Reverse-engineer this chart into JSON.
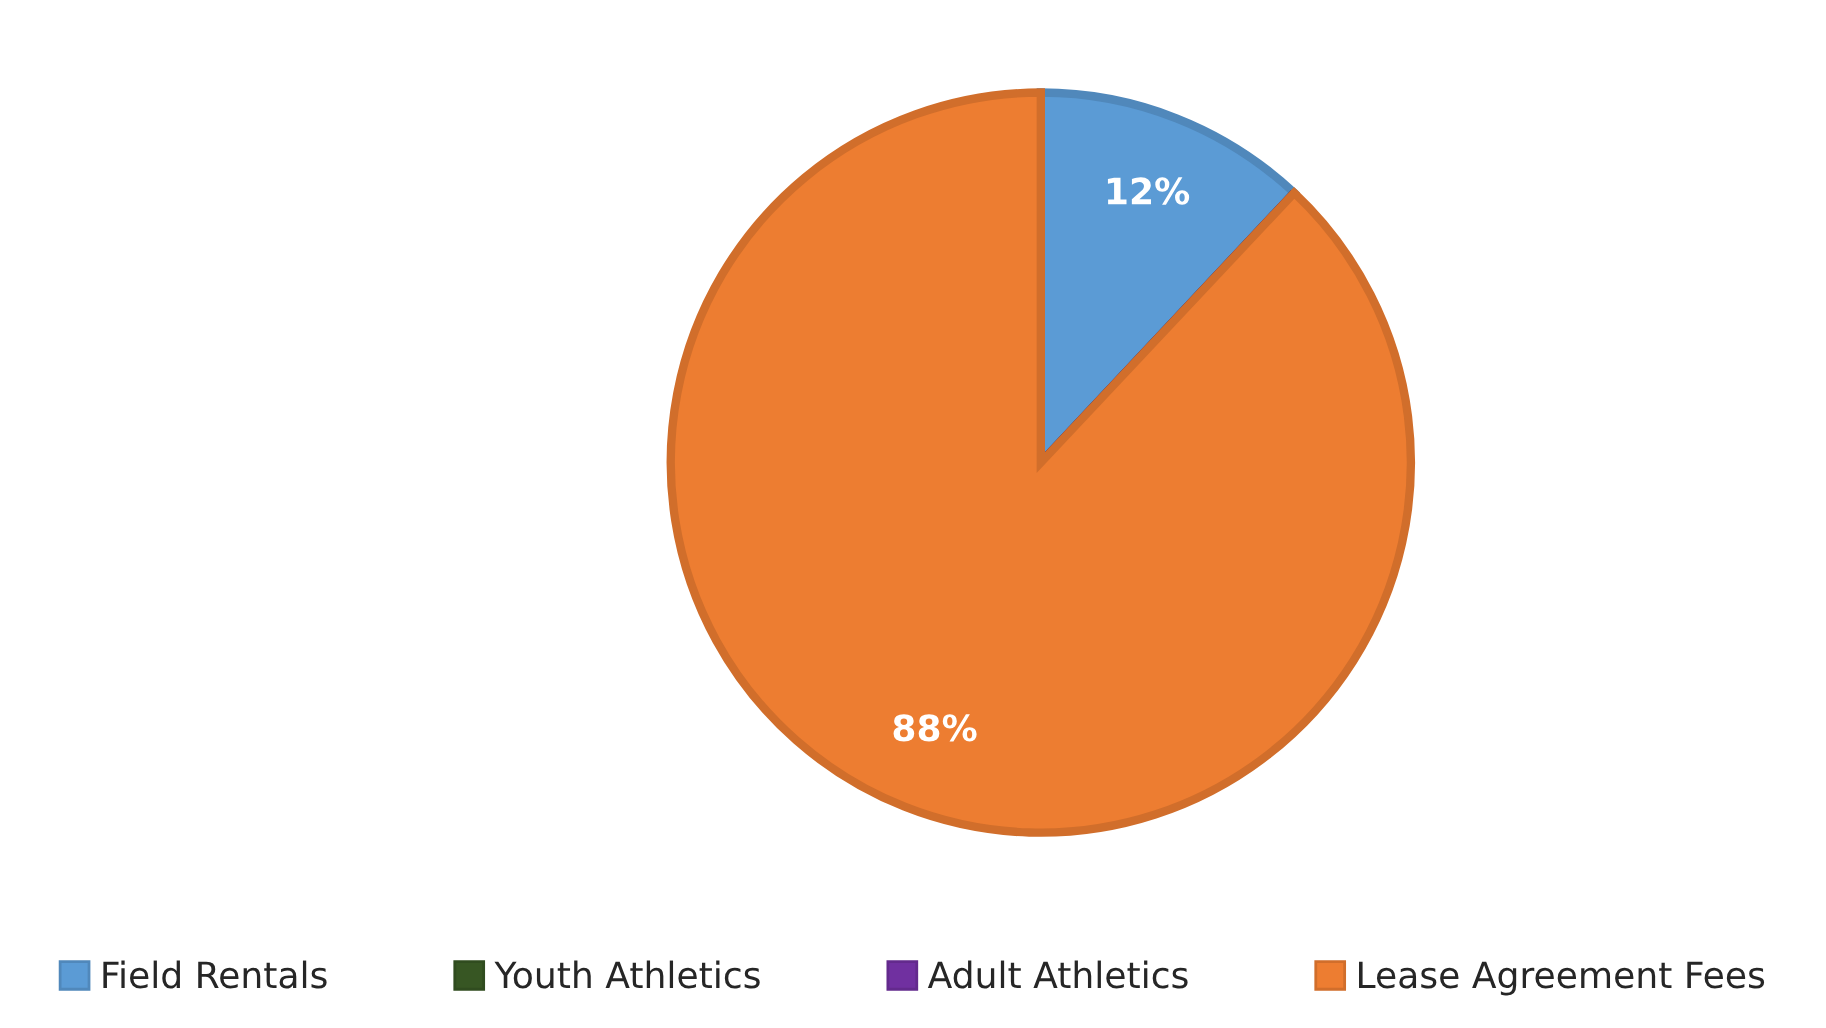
{
  "chart_data": {
    "type": "pie",
    "categories": [
      "Field Rentals",
      "Youth Athletics",
      "Adult Athletics",
      "Lease Agreement Fees"
    ],
    "values": [
      12,
      0,
      0,
      88
    ],
    "colors": [
      "#5b9bd5",
      "#375623",
      "#7030a0",
      "#ed7d31"
    ],
    "value_labels": [
      "12%",
      null,
      null,
      "88%"
    ],
    "legend": "bottom"
  }
}
